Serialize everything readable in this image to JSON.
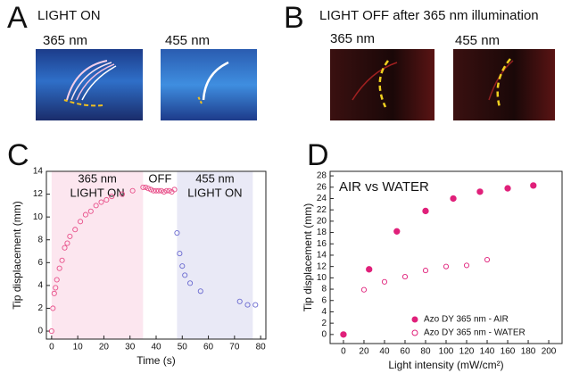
{
  "panels": {
    "a": {
      "letter": "A",
      "title": "LIGHT ON",
      "left": "365 nm",
      "right": "455 nm"
    },
    "b": {
      "letter": "B",
      "title": "LIGHT OFF after 365 nm illumination",
      "left": "365 nm",
      "right": "455 nm"
    },
    "c": {
      "letter": "C"
    },
    "d": {
      "letter": "D"
    }
  },
  "chart_data": [
    {
      "type": "scatter",
      "xlabel": "Time (s)",
      "ylabel": "Tip displacement (mm)",
      "xlim": [
        -2,
        82
      ],
      "ylim": [
        -0.7,
        14
      ],
      "xticks": [
        0,
        10,
        20,
        30,
        40,
        50,
        60,
        70,
        80
      ],
      "yticks": [
        0,
        2,
        4,
        6,
        8,
        10,
        12,
        14
      ],
      "regions": [
        {
          "x": [
            0,
            35
          ],
          "color": "#fce6ef",
          "labels": [
            "365 nm",
            "LIGHT ON"
          ]
        },
        {
          "x": [
            35,
            48
          ],
          "labels": [
            "OFF"
          ]
        },
        {
          "x": [
            48,
            77
          ],
          "color": "#e9e9f6",
          "labels": [
            "455 nm",
            "LIGHT ON"
          ]
        }
      ],
      "series": [
        {
          "color": "#e8508a",
          "marker": "open",
          "x": [
            0,
            0.5,
            1,
            1.5,
            2,
            3,
            4,
            5,
            6,
            7,
            9,
            11,
            13,
            15,
            17,
            19,
            21,
            23,
            27,
            31,
            35,
            36,
            37,
            38,
            39,
            40,
            41,
            42,
            43,
            44,
            45,
            46,
            47
          ],
          "values": [
            0,
            2,
            3.3,
            3.8,
            4.5,
            5.5,
            6.2,
            7.3,
            7.7,
            8.3,
            8.9,
            9.6,
            10.2,
            10.5,
            11,
            11.3,
            11.5,
            11.8,
            12,
            12.3,
            12.6,
            12.6,
            12.5,
            12.4,
            12.3,
            12.3,
            12.3,
            12.3,
            12.2,
            12.3,
            12.3,
            12.2,
            12.4
          ]
        },
        {
          "color": "#6a6ad0",
          "marker": "open",
          "x": [
            48,
            49,
            50,
            51,
            53,
            57,
            72,
            75,
            78
          ],
          "values": [
            8.6,
            6.8,
            5.7,
            4.9,
            4.2,
            3.5,
            2.6,
            2.3,
            2.3
          ]
        }
      ]
    },
    {
      "type": "scatter",
      "title": "AIR vs WATER",
      "xlabel": "Light intensity (mW/cm²)",
      "ylabel": "Tip displacement (mm)",
      "xlim": [
        -13,
        213
      ],
      "ylim": [
        -1.6,
        28.8
      ],
      "xticks": [
        0,
        20,
        40,
        60,
        80,
        100,
        120,
        140,
        160,
        180,
        200
      ],
      "yticks": [
        0,
        2,
        4,
        6,
        8,
        10,
        12,
        14,
        16,
        18,
        20,
        22,
        24,
        26,
        28
      ],
      "legend": "lower-right",
      "series": [
        {
          "name": "Azo DY 365 nm - AIR",
          "color": "#e0207a",
          "marker": "filled",
          "x": [
            0,
            25,
            52,
            80,
            107,
            133,
            160,
            185
          ],
          "values": [
            0,
            11.5,
            18.2,
            21.8,
            24,
            25.2,
            25.8,
            26.3
          ]
        },
        {
          "name": "Azo DY 365 nm - WATER",
          "color": "#e0207a",
          "marker": "open",
          "x": [
            0,
            20,
            40,
            60,
            80,
            100,
            120,
            140
          ],
          "values": [
            0,
            7.9,
            9.3,
            10.2,
            11.3,
            12,
            12.2,
            13.2
          ]
        }
      ]
    }
  ]
}
